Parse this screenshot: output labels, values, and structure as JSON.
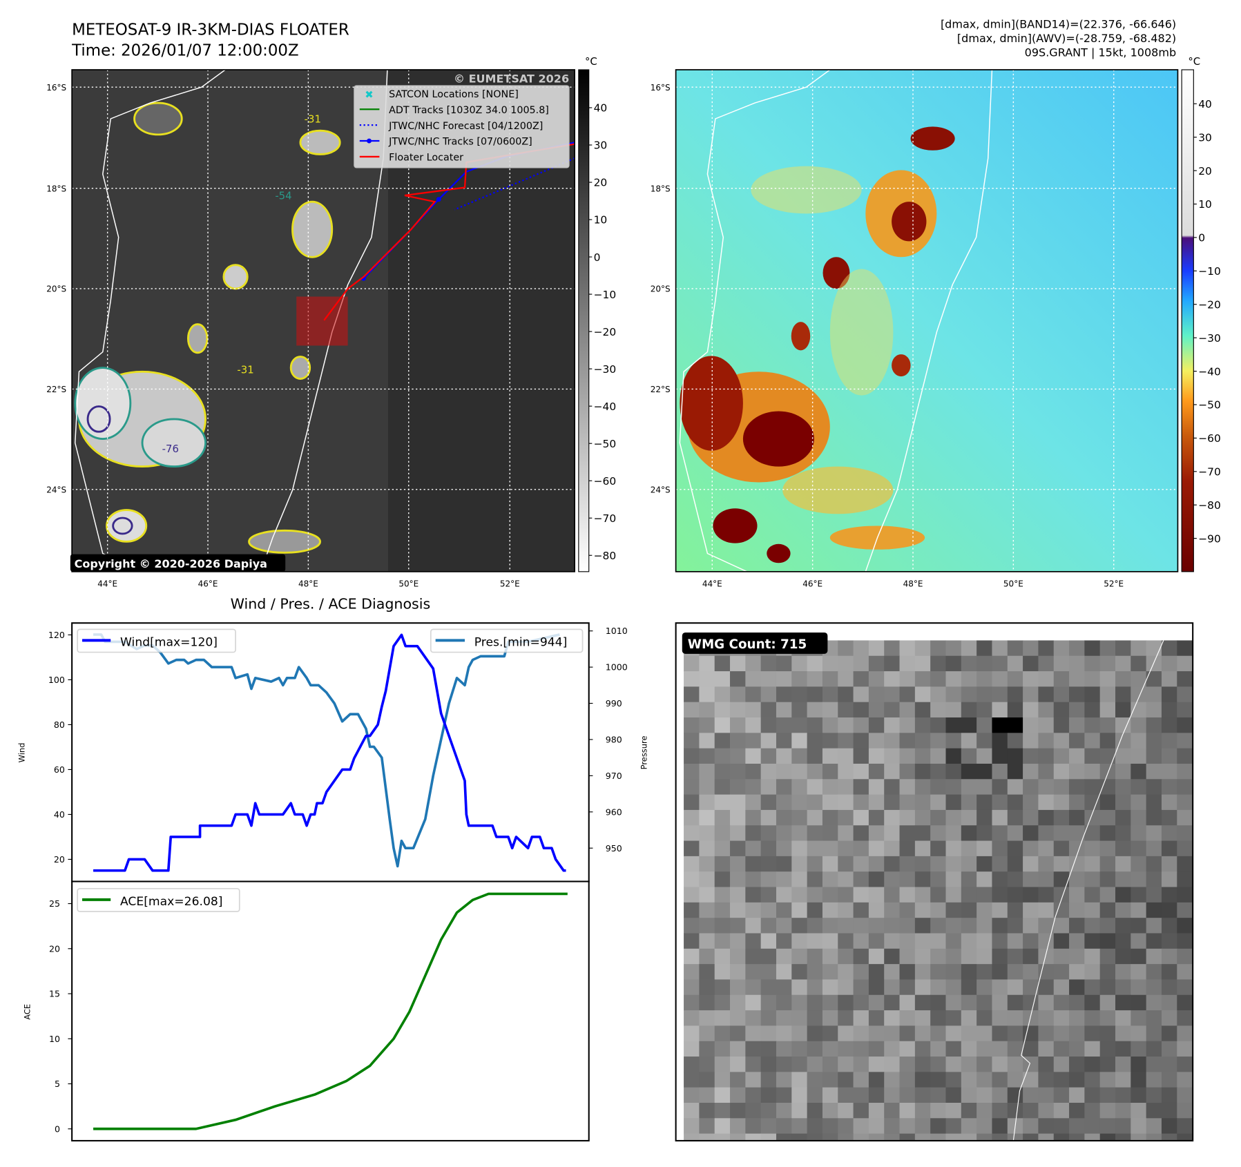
{
  "header": {
    "title_line1": "METEOSAT-9 IR-3KM-DIAS FLOATER",
    "title_line2": "Time: 2026/01/07 12:00:00Z",
    "info_line1": "[dmax, dmin](BAND14)=(22.376, -66.646)",
    "info_line2": "[dmax, dmin](AWV)=(-28.759, -68.482)",
    "info_line3": "09S.GRANT | 15kt, 1008mb"
  },
  "ir_map": {
    "lat_labels": [
      "16°S",
      "18°S",
      "20°S",
      "22°S",
      "24°S"
    ],
    "lon_labels": [
      "44°E",
      "46°E",
      "48°E",
      "50°E",
      "52°E"
    ],
    "copyright": "Copyright © 2020-2026 Dapiya",
    "watermark": "© EUMETSAT 2026",
    "contour_labels": [
      "-31",
      "-54",
      "-76"
    ],
    "legend": [
      "SATCON Locations [NONE]",
      "ADT Tracks [1030Z 34.0 1005.8]",
      "JTWC/NHC Forecast [04/1200Z]",
      "JTWC/NHC Tracks [07/0600Z]",
      "Floater Locater"
    ],
    "colorbar_unit": "°C",
    "colorbar_ticks": [
      "40",
      "30",
      "20",
      "10",
      "0",
      "−10",
      "−20",
      "−30",
      "−40",
      "−50",
      "−60",
      "−70",
      "−80"
    ]
  },
  "awv_map": {
    "lat_labels": [
      "16°S",
      "18°S",
      "20°S",
      "22°S",
      "24°S"
    ],
    "lon_labels": [
      "44°E",
      "46°E",
      "48°E",
      "50°E",
      "52°E"
    ],
    "colorbar_unit": "°C",
    "colorbar_ticks": [
      "40",
      "30",
      "20",
      "10",
      "0",
      "−10",
      "−20",
      "−30",
      "−40",
      "−50",
      "−60",
      "−70",
      "−80",
      "−90"
    ]
  },
  "wmg": {
    "label": "WMG Count: 715"
  },
  "colors": {
    "wind": "#0000ff",
    "pressure": "#1f77b4",
    "ace": "#008000",
    "track": "#ff0000"
  },
  "chart_data": [
    {
      "type": "line",
      "title": "Wind / Pres. / ACE Diagnosis",
      "ylabel": "Wind",
      "y2label": "Pressure",
      "ylim": [
        15,
        122
      ],
      "y2lim": [
        944,
        1010
      ],
      "yticks": [
        "120",
        "100",
        "80",
        "60",
        "40",
        "20"
      ],
      "y2ticks": [
        "1010",
        "1000",
        "990",
        "980",
        "970",
        "960",
        "950"
      ],
      "series": [
        {
          "name": "Wind[max=120]",
          "axis": "left",
          "x": [
            0,
            8,
            9,
            13,
            15,
            18,
            19,
            19.6,
            27,
            27,
            35,
            36,
            39,
            40,
            41,
            42,
            48,
            50,
            51,
            53,
            54,
            55,
            56,
            56.6,
            58,
            59,
            61,
            63,
            65,
            66,
            69,
            70,
            72,
            73,
            74,
            75,
            76,
            78,
            79,
            80,
            82,
            86,
            88,
            90,
            94,
            94.4,
            95,
            101,
            102,
            103,
            104,
            105,
            106,
            107,
            110,
            111,
            113,
            114,
            116,
            117,
            119,
            119.6
          ],
          "values": [
            15,
            15,
            20,
            20,
            15,
            15,
            15,
            30,
            30,
            35,
            35,
            40,
            40,
            35,
            45,
            40,
            40,
            45,
            40,
            40,
            35,
            40,
            40,
            45,
            45,
            50,
            55,
            60,
            60,
            65,
            75,
            75,
            80,
            88,
            95,
            105,
            115,
            120,
            115,
            115,
            115,
            105,
            85,
            75,
            55,
            40,
            35,
            35,
            30,
            30,
            30,
            30,
            25,
            30,
            25,
            30,
            30,
            25,
            25,
            20,
            15,
            15
          ]
        },
        {
          "name": "Pres.[min=944]",
          "axis": "right",
          "x": [
            0,
            2,
            3,
            8,
            11,
            13,
            15,
            17,
            19,
            21,
            23,
            24,
            26,
            28,
            30,
            33,
            35,
            36,
            39,
            40,
            41,
            45,
            47,
            48,
            49,
            51,
            52,
            54,
            55,
            57,
            59,
            61,
            63,
            65,
            67,
            69,
            70,
            71,
            73,
            75,
            76,
            77,
            78,
            79,
            80,
            81,
            84,
            86,
            88,
            90,
            92,
            94,
            95,
            96,
            98,
            101,
            104,
            105,
            110,
            114,
            118
          ],
          "values": [
            1009,
            1009,
            1007,
            1007,
            1005,
            1006,
            1006,
            1004,
            1001,
            1002,
            1002,
            1001,
            1002,
            1002,
            1000,
            1000,
            1000,
            997,
            998,
            994,
            997,
            996,
            997,
            995,
            997,
            997,
            1000,
            997,
            995,
            995,
            993,
            990,
            985,
            987,
            987,
            983,
            978,
            978,
            975,
            958,
            950,
            945,
            952,
            950,
            950,
            950,
            958,
            970,
            980,
            990,
            997,
            995,
            1000,
            1002,
            1003,
            1003,
            1003,
            1007,
            1007,
            1008,
            1009
          ]
        }
      ]
    },
    {
      "type": "line",
      "ylabel": "ACE",
      "ylim": [
        -1,
        27
      ],
      "yticks": [
        "0",
        "5",
        "10",
        "15",
        "20",
        "25"
      ],
      "series": [
        {
          "name": "ACE[max=26.08]",
          "x": [
            0,
            26,
            36,
            46,
            56,
            64,
            70,
            76,
            80,
            84,
            88,
            92,
            96,
            100,
            120
          ],
          "values": [
            0,
            0,
            1,
            2.5,
            3.8,
            5.3,
            7,
            10,
            13,
            17,
            21,
            24,
            25.4,
            26.08,
            26.08
          ]
        }
      ]
    }
  ]
}
